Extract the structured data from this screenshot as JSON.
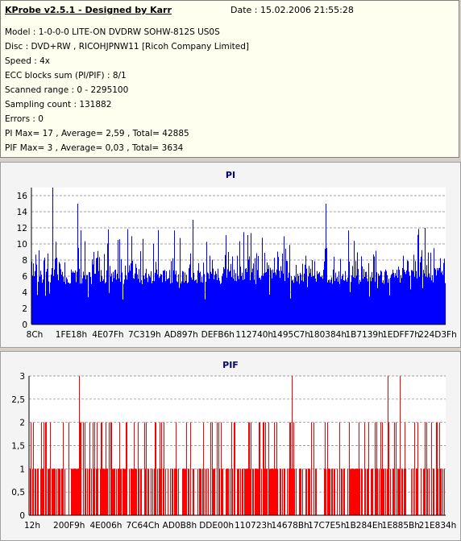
{
  "info": {
    "title": "KProbe v2.5.1 - Designed by Karr",
    "date": "Date : 15.02.2006 21:55:28",
    "lines": [
      "Model : 1-0-0-0 LITE-ON DVDRW SOHW-812S  US0S",
      "Disc : DVD+RW , RICOHJPNW11 [Ricoh Company Limited]",
      "Speed : 4x",
      "ECC blocks sum (PI/PIF) : 8/1",
      "Scanned range : 0 - 2295100",
      "Sampling count : 131882",
      "Errors : 0",
      "PI Max= 17 , Average= 2,59 , Total= 42885",
      "PIF Max= 3 , Average= 0,03 , Total= 3634"
    ]
  },
  "colors": {
    "pi": "#0000ff",
    "pif": "#ff0000",
    "title": "#000080",
    "grid": "#808080"
  },
  "chart_data": [
    {
      "type": "bar",
      "title": "PI",
      "xlabel": "",
      "ylabel": "",
      "ylim": [
        0,
        17
      ],
      "y_ticks": [
        "0",
        "2",
        "4",
        "6",
        "8",
        "10",
        "12",
        "14",
        "16"
      ],
      "x_tick_labels": [
        "8Ch",
        "1FE18h",
        "4E07Fh",
        "7C319h",
        "AD897h",
        "DEFB6h",
        "112740h",
        "1495C7h",
        "180384h",
        "1B7139h",
        "1EDFF7h",
        "224D3Fh"
      ],
      "grid": true,
      "typical_range": [
        4,
        9
      ],
      "max": 17,
      "average": 2.59,
      "peaks": [
        {
          "x_frac": 0.05,
          "value": 17
        },
        {
          "x_frac": 0.11,
          "value": 15
        },
        {
          "x_frac": 0.71,
          "value": 15
        },
        {
          "x_frac": 0.39,
          "value": 13
        },
        {
          "x_frac": 0.95,
          "value": 12
        }
      ]
    },
    {
      "type": "bar",
      "title": "PIF",
      "xlabel": "",
      "ylabel": "",
      "ylim": [
        0,
        3
      ],
      "y_ticks": [
        "0",
        "0,5",
        "1",
        "1,5",
        "2",
        "2,5",
        "3"
      ],
      "x_tick_labels": [
        "12h",
        "200F9h",
        "4E006h",
        "7C64Ch",
        "AD0B8h",
        "DDE00h",
        "110723h",
        "14678Bh",
        "17C7E5h",
        "1B284Eh",
        "1E885Bh",
        "21E834h"
      ],
      "grid": true,
      "values_present": [
        1,
        2
      ],
      "max": 3,
      "average": 0.03,
      "peaks": [
        {
          "x_frac": 0.12,
          "value": 3
        },
        {
          "x_frac": 0.63,
          "value": 3
        },
        {
          "x_frac": 0.86,
          "value": 3
        },
        {
          "x_frac": 0.89,
          "value": 3
        }
      ]
    }
  ]
}
